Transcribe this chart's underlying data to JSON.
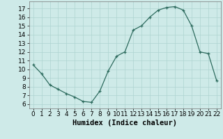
{
  "x": [
    0,
    1,
    2,
    3,
    4,
    5,
    6,
    7,
    8,
    9,
    10,
    11,
    12,
    13,
    14,
    15,
    16,
    17,
    18,
    19,
    20,
    21,
    22
  ],
  "y": [
    10.5,
    9.5,
    8.2,
    7.7,
    7.2,
    6.8,
    6.3,
    6.2,
    7.5,
    9.8,
    11.5,
    12.0,
    14.5,
    15.0,
    16.0,
    16.8,
    17.1,
    17.2,
    16.8,
    15.0,
    12.0,
    11.8,
    8.7
  ],
  "title": "",
  "xlabel": "Humidex (Indice chaleur)",
  "ylabel": "",
  "xlim": [
    -0.5,
    22.5
  ],
  "ylim": [
    5.5,
    17.8
  ],
  "yticks": [
    6,
    7,
    8,
    9,
    10,
    11,
    12,
    13,
    14,
    15,
    16,
    17
  ],
  "xticks": [
    0,
    1,
    2,
    3,
    4,
    5,
    6,
    7,
    8,
    9,
    10,
    11,
    12,
    13,
    14,
    15,
    16,
    17,
    18,
    19,
    20,
    21,
    22
  ],
  "line_color": "#2d6b5e",
  "marker_color": "#2d6b5e",
  "bg_color": "#ceeae8",
  "grid_color": "#aed4d0",
  "xlabel_fontsize": 7.5,
  "tick_fontsize": 6.5
}
